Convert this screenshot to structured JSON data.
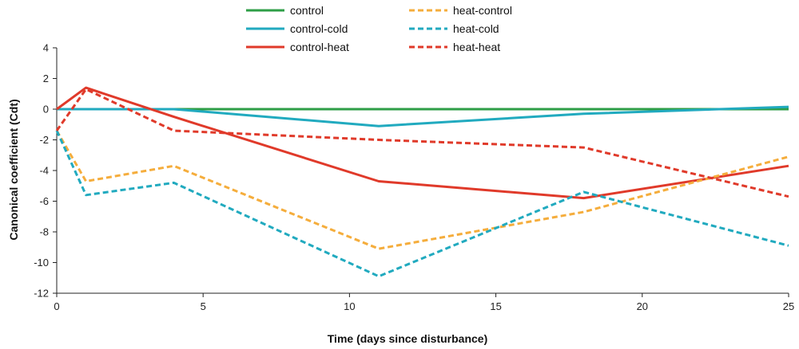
{
  "chart_data": {
    "type": "line",
    "title": "",
    "xlabel": "Time (days since disturbance)",
    "ylabel": "Canonical coefficient (Cdt)",
    "xlim": [
      0,
      25
    ],
    "ylim": [
      -12,
      4
    ],
    "xticks": [
      0,
      5,
      10,
      15,
      20,
      25
    ],
    "yticks": [
      4,
      2,
      0,
      -2,
      -4,
      -6,
      -8,
      -10,
      -12
    ],
    "grid": false,
    "legend_position": "top",
    "series": [
      {
        "name": "control",
        "color": "#2e9e47",
        "style": "solid",
        "x": [
          0,
          1,
          4,
          11,
          18,
          25
        ],
        "y": [
          0,
          0,
          0,
          0,
          0,
          0
        ]
      },
      {
        "name": "control-cold",
        "color": "#21aabf",
        "style": "solid",
        "x": [
          0,
          1,
          4,
          11,
          18,
          25
        ],
        "y": [
          0,
          0,
          0,
          -1.1,
          -0.3,
          0.15
        ]
      },
      {
        "name": "control-heat",
        "color": "#e03a2a",
        "style": "solid",
        "x": [
          0,
          1,
          4,
          11,
          18,
          25
        ],
        "y": [
          0,
          1.4,
          -0.5,
          -4.7,
          -5.8,
          -3.7
        ]
      },
      {
        "name": "heat-control",
        "color": "#f5ad3c",
        "style": "dashed",
        "x": [
          0,
          1,
          4,
          11,
          18,
          25
        ],
        "y": [
          -1.4,
          -4.7,
          -3.7,
          -9.1,
          -6.7,
          -3.1
        ]
      },
      {
        "name": "heat-cold",
        "color": "#21aabf",
        "style": "dashed",
        "x": [
          0,
          1,
          4,
          11,
          18,
          25
        ],
        "y": [
          -1.4,
          -5.6,
          -4.8,
          -10.9,
          -5.4,
          -8.9
        ]
      },
      {
        "name": "heat-heat",
        "color": "#e03a2a",
        "style": "dashed",
        "x": [
          0,
          1,
          4,
          11,
          18,
          25
        ],
        "y": [
          -1.4,
          1.3,
          -1.4,
          -2.0,
          -2.5,
          -5.7
        ]
      }
    ],
    "legend_columns": [
      [
        "control",
        "control-cold",
        "control-heat"
      ],
      [
        "heat-control",
        "heat-cold",
        "heat-heat"
      ]
    ]
  }
}
